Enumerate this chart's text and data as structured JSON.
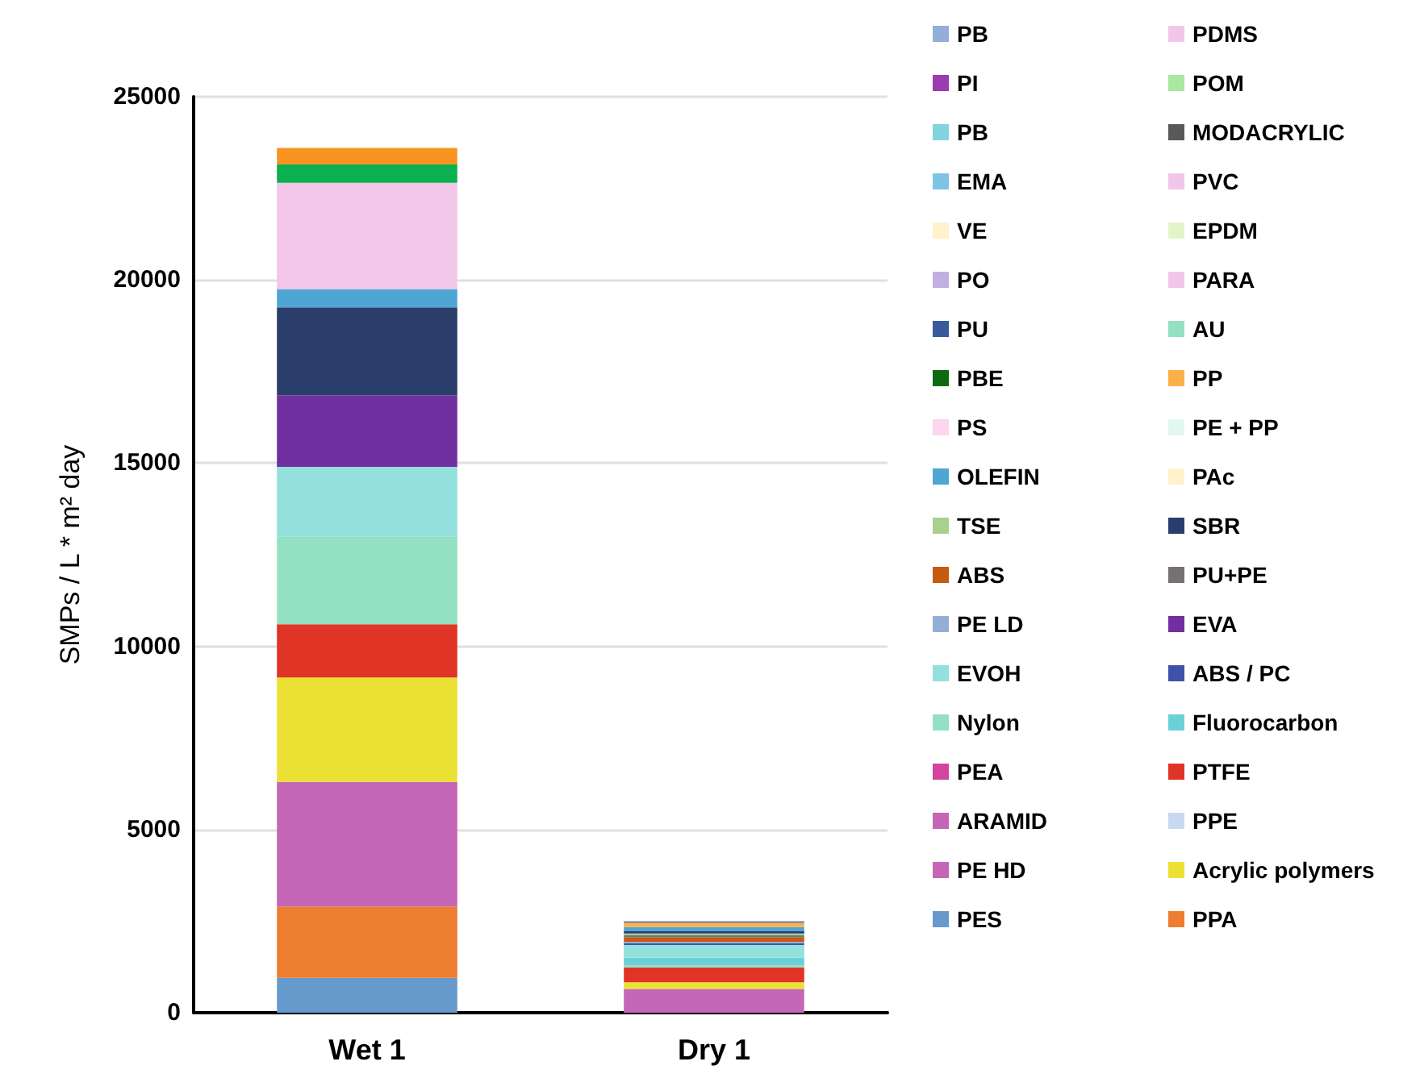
{
  "chart_data": {
    "type": "bar",
    "stacked": true,
    "ylabel": "SMPs / L * m² day",
    "categories": [
      "Wet 1",
      "Dry 1"
    ],
    "ylim": [
      0,
      25000
    ],
    "yticks": [
      0,
      5000,
      10000,
      15000,
      20000,
      25000
    ],
    "grid": "y",
    "legend": "right",
    "series": [
      {
        "name": "PES",
        "color": "#6699cc",
        "values": [
          950,
          0
        ]
      },
      {
        "name": "PPA",
        "color": "#ed7d31",
        "values": [
          1950,
          0
        ]
      },
      {
        "name": "PE HD",
        "color": "#c566b6",
        "values": [
          3400,
          650
        ]
      },
      {
        "name": "Acrylic polymers",
        "color": "#ebe132",
        "values": [
          2850,
          180
        ]
      },
      {
        "name": "ARAMID",
        "color": "#c566b6",
        "values": [
          0,
          0
        ]
      },
      {
        "name": "PPE",
        "color": "#c9d9f0",
        "values": [
          0,
          null
        ]
      },
      {
        "name": "PEA",
        "color": "#d4449e",
        "values": [
          0,
          0
        ]
      },
      {
        "name": "PTFE",
        "color": "#e03427",
        "values": [
          1450,
          410
        ]
      },
      {
        "name": "Nylon",
        "color": "#93e0c3",
        "values": [
          2400,
          60
        ]
      },
      {
        "name": "Fluorocarbon",
        "color": "#6cd0d8",
        "values": [
          0,
          200
        ]
      },
      {
        "name": "EVOH",
        "color": "#93e0dc",
        "values": [
          1900,
          350
        ]
      },
      {
        "name": "ABS / PC",
        "color": "#3f51a8",
        "values": [
          0,
          40
        ]
      },
      {
        "name": "PE LD",
        "color": "#94aed8",
        "values": [
          0,
          40
        ]
      },
      {
        "name": "EVA",
        "color": "#7030a0",
        "values": [
          1950,
          0
        ]
      },
      {
        "name": "ABS",
        "color": "#c55a11",
        "values": [
          0,
          120
        ]
      },
      {
        "name": "PU+PE",
        "color": "#767171",
        "values": [
          0,
          60
        ]
      },
      {
        "name": "TSE",
        "color": "#a9d18e",
        "values": [
          0,
          50
        ]
      },
      {
        "name": "SBR",
        "color": "#2b3d6b",
        "values": [
          2400,
          60
        ]
      },
      {
        "name": "OLEFIN",
        "color": "#4fa6d4",
        "values": [
          500,
          120
        ]
      },
      {
        "name": "PAc",
        "color": "#fff2cc",
        "values": [
          0,
          null
        ]
      },
      {
        "name": "PS",
        "color": "#fcd5ee",
        "values": [
          0,
          null
        ]
      },
      {
        "name": "PE + PP",
        "color": "#e2f8ee",
        "values": [
          0,
          0
        ]
      },
      {
        "name": "PBE",
        "color": "#0d6a10",
        "values": [
          0,
          0
        ]
      },
      {
        "name": "PP",
        "color": "#fbb04a",
        "values": [
          0,
          120
        ]
      },
      {
        "name": "PU",
        "color": "#3a5a9e",
        "values": [
          0,
          30
        ]
      },
      {
        "name": "AU",
        "color": "#93e0c3",
        "values": [
          0,
          0
        ]
      },
      {
        "name": "PO",
        "color": "#c3aee0",
        "values": [
          0,
          null
        ]
      },
      {
        "name": "PARA",
        "color": "#f2c6e8",
        "values": [
          0,
          0
        ]
      },
      {
        "color": "#2b3d6b",
        "values": [
          0,
          0
        ]
      },
      {
        "name": "EPDM",
        "color": "#e2f5c8",
        "values": [
          0,
          0
        ]
      },
      {
        "name": "VE",
        "color": "#fff2cc",
        "values": [
          0,
          0
        ]
      },
      {
        "color": "#bf9000",
        "values": [
          0,
          0
        ]
      },
      {
        "name": "EMA",
        "color": "#7fc4e4",
        "values": [
          0,
          0
        ]
      },
      {
        "name": "PVC",
        "color": "#f2c6e8",
        "values": [
          2900,
          0
        ]
      },
      {
        "name": "PB",
        "color": "#80d4e0",
        "values": [
          0,
          0
        ]
      },
      {
        "name": "MODACRYLIC",
        "color": "#595959",
        "values": [
          0,
          0
        ]
      },
      {
        "name": "PI",
        "color": "#9e3bb0",
        "values": [
          0,
          0
        ]
      },
      {
        "color": "#a8e8a0",
        "values": [
          0,
          0
        ]
      },
      {
        "color": "#0bb050",
        "values": [
          500,
          0
        ]
      },
      {
        "name": "POM",
        "color": "#a8e8a0",
        "values": [
          0,
          0
        ]
      },
      {
        "name": "PB",
        "color": "#94aed8",
        "values": [
          0,
          0
        ]
      },
      {
        "name": "PDMS",
        "color": "#f2c6e8",
        "values": [
          0,
          0
        ]
      },
      {
        "color": "#f79421",
        "values": [
          450,
          0
        ]
      }
    ]
  }
}
